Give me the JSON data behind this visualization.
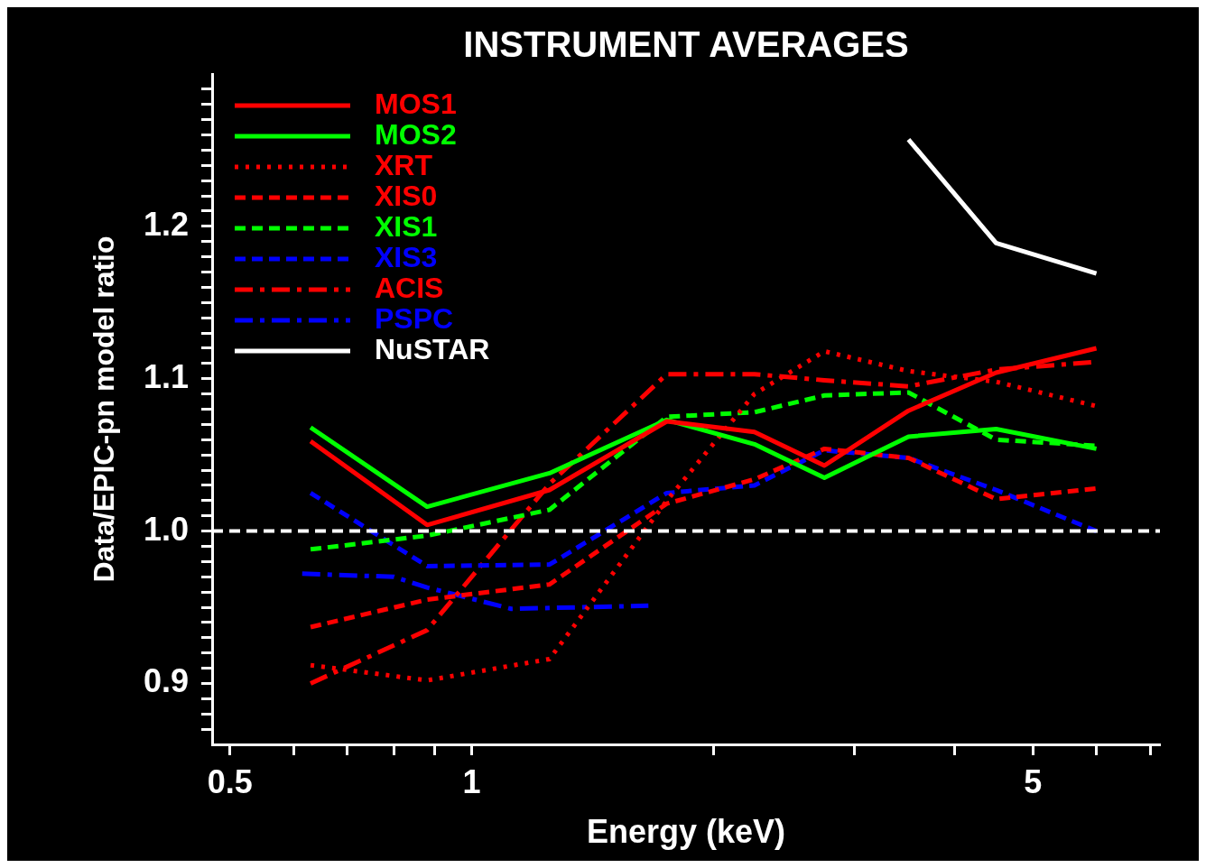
{
  "chart_data": {
    "type": "line",
    "title": "INSTRUMENT AVERAGES",
    "xlabel": "Energy (keV)",
    "ylabel": "Data/EPIC-pn model ratio",
    "log": "x",
    "grid": false,
    "legend": "top left",
    "marker": "none",
    "xlim": [
      0.475,
      7.2
    ],
    "xticks": [
      0.5,
      {
        "value": 0.6,
        "label": null
      },
      {
        "value": 0.7,
        "label": null
      },
      {
        "value": 0.8,
        "label": null
      },
      {
        "value": 0.9,
        "label": null
      },
      1,
      {
        "value": 2,
        "label": null
      },
      {
        "value": 3,
        "label": null
      },
      {
        "value": 4,
        "label": null
      },
      5,
      {
        "value": 6,
        "label": null
      },
      {
        "value": 7,
        "label": null
      }
    ],
    "ylim": [
      0.86,
      1.3
    ],
    "yticks": [
      {
        "value": 0.87,
        "label": null
      },
      {
        "value": 0.88,
        "label": null
      },
      {
        "value": 0.89,
        "label": null
      },
      0.9,
      {
        "value": 0.91,
        "label": null
      },
      {
        "value": 0.92,
        "label": null
      },
      {
        "value": 0.93,
        "label": null
      },
      {
        "value": 0.94,
        "label": null
      },
      {
        "value": 0.95,
        "label": null
      },
      {
        "value": 0.96,
        "label": null
      },
      {
        "value": 0.97,
        "label": null
      },
      {
        "value": 0.98,
        "label": null
      },
      {
        "value": 0.99,
        "label": null
      },
      {
        "value": 1,
        "label": "1.0"
      },
      {
        "value": 1.01,
        "label": null
      },
      {
        "value": 1.02,
        "label": null
      },
      {
        "value": 1.03,
        "label": null
      },
      {
        "value": 1.04,
        "label": null
      },
      {
        "value": 1.05,
        "label": null
      },
      {
        "value": 1.06,
        "label": null
      },
      {
        "value": 1.07,
        "label": null
      },
      {
        "value": 1.08,
        "label": null
      },
      {
        "value": 1.09,
        "label": null
      },
      1.1,
      {
        "value": 1.11,
        "label": null
      },
      {
        "value": 1.12,
        "label": null
      },
      {
        "value": 1.13,
        "label": null
      },
      {
        "value": 1.14,
        "label": null
      },
      {
        "value": 1.15,
        "label": null
      },
      {
        "value": 1.16,
        "label": null
      },
      {
        "value": 1.17,
        "label": null
      },
      {
        "value": 1.18,
        "label": null
      },
      {
        "value": 1.19,
        "label": null
      },
      1.2,
      {
        "value": 1.21,
        "label": null
      },
      {
        "value": 1.22,
        "label": null
      },
      {
        "value": 1.23,
        "label": null
      },
      {
        "value": 1.24,
        "label": null
      },
      {
        "value": 1.25,
        "label": null
      },
      {
        "value": 1.26,
        "label": null
      },
      {
        "value": 1.27,
        "label": null
      },
      {
        "value": 1.28,
        "label": null
      },
      {
        "value": 1.29,
        "label": null
      }
    ],
    "ref_lines": [
      {
        "axis": "y",
        "value": 1,
        "label": null,
        "color": "#ffffff",
        "line_style": "dashed"
      }
    ],
    "series": [
      {
        "name": "MOS1",
        "color": "#ff0000",
        "line_style": "solid",
        "x": [
          0.63,
          0.88,
          1.25,
          1.75,
          2.25,
          2.75,
          3.5,
          4.5,
          6.0
        ],
        "values": [
          1.059,
          1.004,
          1.027,
          1.072,
          1.065,
          1.043,
          1.079,
          1.104,
          1.12
        ]
      },
      {
        "name": "MOS2",
        "color": "#00ff00",
        "line_style": "solid",
        "x": [
          0.63,
          0.88,
          1.25,
          1.75,
          2.25,
          2.75,
          3.5,
          4.5,
          6.0
        ],
        "values": [
          1.068,
          1.016,
          1.038,
          1.073,
          1.057,
          1.035,
          1.062,
          1.067,
          1.054
        ]
      },
      {
        "name": "XRT",
        "color": "#ff0000",
        "line_style": "dotted",
        "x": [
          0.63,
          0.88,
          1.25,
          1.75,
          2.25,
          2.75,
          3.5,
          4.5,
          6.0
        ],
        "values": [
          0.912,
          0.902,
          0.916,
          1.02,
          1.09,
          1.118,
          1.105,
          1.098,
          1.082
        ]
      },
      {
        "name": "XIS0",
        "color": "#ff0000",
        "line_style": "dashed",
        "x": [
          0.63,
          0.88,
          1.25,
          1.75,
          2.25,
          2.75,
          3.5,
          4.5,
          6.0
        ],
        "values": [
          0.937,
          0.955,
          0.965,
          1.018,
          1.034,
          1.054,
          1.048,
          1.021,
          1.028
        ]
      },
      {
        "name": "XIS1",
        "color": "#00ff00",
        "line_style": "dashed",
        "x": [
          0.63,
          0.88,
          1.25,
          1.75,
          2.25,
          2.75,
          3.5,
          4.5,
          6.0
        ],
        "values": [
          0.988,
          0.997,
          1.014,
          1.075,
          1.078,
          1.089,
          1.091,
          1.06,
          1.056
        ]
      },
      {
        "name": "XIS3",
        "color": "#0000ff",
        "line_style": "dashed",
        "x": [
          0.63,
          0.88,
          1.25,
          1.75,
          2.25,
          2.75,
          3.5,
          4.5,
          6.0
        ],
        "values": [
          1.025,
          0.977,
          0.978,
          1.025,
          1.03,
          1.053,
          1.048,
          1.027,
          1.0
        ]
      },
      {
        "name": "ACIS",
        "color": "#ff0000",
        "line_style": "dashdot",
        "x": [
          0.63,
          0.88,
          1.25,
          1.75,
          2.25,
          2.75,
          3.5,
          4.5,
          6.0
        ],
        "values": [
          0.9,
          0.935,
          1.031,
          1.103,
          1.103,
          1.099,
          1.095,
          1.106,
          1.111
        ]
      },
      {
        "name": "PSPC",
        "color": "#0000ff",
        "line_style": "dashdot",
        "x": [
          0.615,
          0.8,
          0.88,
          1.12,
          1.66
        ],
        "values": [
          0.972,
          0.97,
          0.963,
          0.949,
          0.951
        ]
      },
      {
        "name": "NuSTAR",
        "color": "#ffffff",
        "line_style": "solid",
        "x": [
          3.5,
          4.5,
          6.0
        ],
        "values": [
          1.257,
          1.189,
          1.169
        ]
      }
    ]
  }
}
